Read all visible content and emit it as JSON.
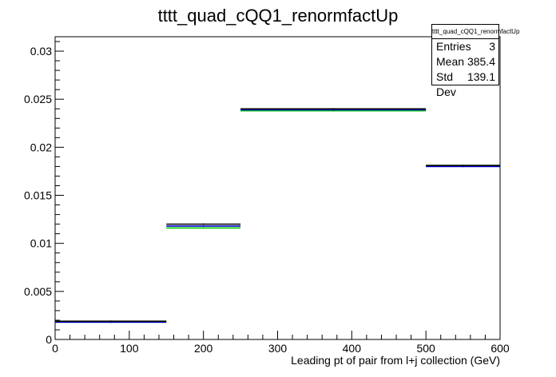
{
  "chart_data": {
    "type": "histogram",
    "title": "tttt_quad_cQQ1_renormfactUp",
    "xlabel": "Leading pt of pair from l+j collection (GeV)",
    "ylabel": "",
    "xlim": [
      0,
      600
    ],
    "ylim": [
      0,
      0.0315
    ],
    "x_ticks": [
      "0",
      "100",
      "200",
      "300",
      "400",
      "500",
      "600"
    ],
    "y_ticks": [
      "0",
      "0.005",
      "0.01",
      "0.015",
      "0.02",
      "0.025",
      "0.03"
    ],
    "bins": [
      [
        0,
        150
      ],
      [
        150,
        250
      ],
      [
        250,
        500
      ],
      [
        500,
        600
      ]
    ],
    "series": [
      {
        "color": "#000000",
        "values": [
          0.0019,
          0.012,
          0.024,
          0.0181
        ]
      },
      {
        "color": "#0000cc",
        "values": [
          0.0018,
          0.0118,
          0.0239,
          0.018
        ]
      },
      {
        "color": "#00cc00",
        "values": [
          0.0018,
          0.0116,
          0.0238,
          0.0181
        ]
      }
    ],
    "grid": false,
    "legend": "none"
  },
  "stats": {
    "title": "tttt_quad_cQQ1_renormfactUp",
    "entries_label": "Entries",
    "entries_value": "3",
    "mean_label": "Mean",
    "mean_value": "385.4",
    "stddev_label": "Std Dev",
    "stddev_value": "139.1"
  }
}
